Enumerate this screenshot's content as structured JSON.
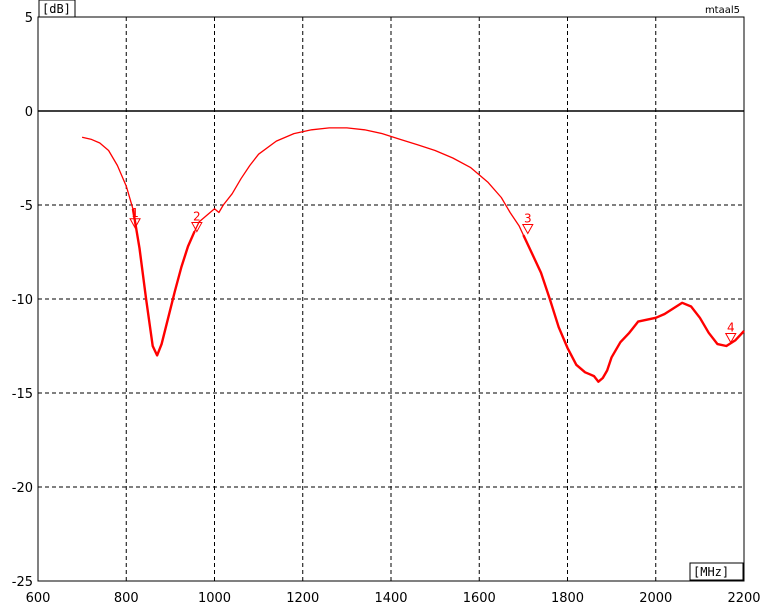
{
  "chart_data": {
    "type": "line",
    "xlabel": "[MHz]",
    "ylabel": "[dB]",
    "corner_label": "mtaal5",
    "xlim": [
      600,
      2200
    ],
    "ylim": [
      -25,
      5
    ],
    "x_ticks": [
      600,
      800,
      1000,
      1200,
      1400,
      1600,
      1800,
      2000,
      2200
    ],
    "y_ticks": [
      5,
      0,
      -5,
      -10,
      -15,
      -20,
      -25
    ],
    "grid": true,
    "line_color": "#ff0000",
    "series": [
      {
        "x": [
          700,
          720,
          740,
          760,
          780,
          800,
          815,
          830,
          845,
          860,
          870,
          880,
          895,
          910,
          925,
          940,
          955,
          965,
          980,
          1000,
          1010,
          1020,
          1040,
          1060,
          1080,
          1100,
          1140,
          1180,
          1220,
          1260,
          1300,
          1340,
          1380,
          1420,
          1460,
          1500,
          1540,
          1580,
          1620,
          1650,
          1670,
          1690,
          1700,
          1720,
          1740,
          1760,
          1780,
          1800,
          1820,
          1840,
          1850,
          1860,
          1870,
          1880,
          1890,
          1900,
          1920,
          1940,
          1960,
          1980,
          2000,
          2020,
          2040,
          2060,
          2080,
          2100,
          2120,
          2140,
          2160,
          2180,
          2200
        ],
        "y": [
          -1.4,
          -1.5,
          -1.7,
          -2.1,
          -2.9,
          -4.0,
          -5.2,
          -7.3,
          -10.0,
          -12.5,
          -13.0,
          -12.4,
          -11.0,
          -9.6,
          -8.3,
          -7.2,
          -6.4,
          -5.9,
          -5.6,
          -5.2,
          -5.4,
          -5.0,
          -4.4,
          -3.6,
          -2.9,
          -2.3,
          -1.6,
          -1.2,
          -1.0,
          -0.9,
          -0.9,
          -1.0,
          -1.2,
          -1.5,
          -1.8,
          -2.1,
          -2.5,
          -3.0,
          -3.8,
          -4.6,
          -5.4,
          -6.1,
          -6.6,
          -7.6,
          -8.6,
          -10.0,
          -11.5,
          -12.6,
          -13.5,
          -13.9,
          -14.0,
          -14.1,
          -14.4,
          -14.2,
          -13.8,
          -13.1,
          -12.3,
          -11.8,
          -11.2,
          -11.1,
          -11.0,
          -10.8,
          -10.5,
          -10.2,
          -10.4,
          -11.0,
          -11.8,
          -12.4,
          -12.5,
          -12.2,
          -11.7
        ]
      }
    ],
    "markers": [
      {
        "label": "1",
        "x": 820,
        "y": -6.0
      },
      {
        "label": "2",
        "x": 960,
        "y": -6.2
      },
      {
        "label": "3",
        "x": 1710,
        "y": -6.3
      },
      {
        "label": "4",
        "x": 2170,
        "y": -12.1
      }
    ]
  }
}
